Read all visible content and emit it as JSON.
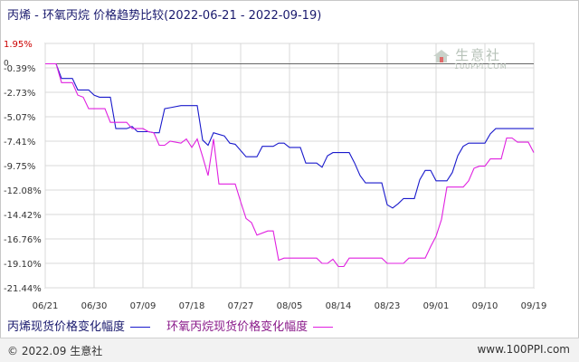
{
  "title": "丙烯 - 环氧丙烷 价格趋势比较(2022-06-21 - 2022-09-19)",
  "watermark": {
    "name": "生意社",
    "url": "100PPI.COM"
  },
  "footer": {
    "copyright": "© 2022.09 生意社",
    "site": "www.100PPI.com"
  },
  "colors": {
    "series1": "#1a1acc",
    "series2": "#e020e0",
    "grid": "#d8d8d8",
    "tick_red": "#cc0000"
  },
  "chart_data": {
    "type": "line",
    "y_ticks": [
      "1.95%",
      "-0.39%",
      "-2.73%",
      "-5.07%",
      "-7.41%",
      "-9.75%",
      "-12.08%",
      "-14.42%",
      "-16.76%",
      "-19.10%",
      "-21.44%"
    ],
    "y_tick_values": [
      1.95,
      -0.39,
      -2.73,
      -5.07,
      -7.41,
      -9.75,
      -12.08,
      -14.42,
      -16.76,
      -19.1,
      -21.44
    ],
    "zero_label": "0",
    "ylim": [
      -21.44,
      1.95
    ],
    "x_ticks": [
      "06/21",
      "06/30",
      "07/09",
      "07/18",
      "07/27",
      "08/05",
      "08/14",
      "08/23",
      "09/01",
      "09/10",
      "09/19"
    ],
    "x_range": [
      0,
      90
    ],
    "series": [
      {
        "name": "丙烯现货价格变化幅度",
        "points": [
          [
            0,
            0
          ],
          [
            2,
            0
          ],
          [
            3,
            -1.4
          ],
          [
            5,
            -1.4
          ],
          [
            6,
            -2.5
          ],
          [
            8,
            -2.5
          ],
          [
            9,
            -3
          ],
          [
            10,
            -3.2
          ],
          [
            12,
            -3.2
          ],
          [
            13,
            -6.2
          ],
          [
            15,
            -6.2
          ],
          [
            16,
            -6
          ],
          [
            17,
            -6.5
          ],
          [
            19,
            -6.5
          ],
          [
            20,
            -6.6
          ],
          [
            21,
            -6.6
          ],
          [
            22,
            -4.3
          ],
          [
            23,
            -4.2
          ],
          [
            25,
            -4
          ],
          [
            28,
            -4
          ],
          [
            29,
            -7.3
          ],
          [
            30,
            -7.8
          ],
          [
            31,
            -6.6
          ],
          [
            33,
            -6.9
          ],
          [
            34,
            -7.6
          ],
          [
            35,
            -7.7
          ],
          [
            37,
            -8.9
          ],
          [
            39,
            -8.9
          ],
          [
            40,
            -7.9
          ],
          [
            42,
            -7.9
          ],
          [
            43,
            -7.6
          ],
          [
            44,
            -7.6
          ],
          [
            45,
            -8
          ],
          [
            47,
            -8
          ],
          [
            48,
            -9.5
          ],
          [
            50,
            -9.5
          ],
          [
            51,
            -9.9
          ],
          [
            52,
            -8.8
          ],
          [
            53,
            -8.5
          ],
          [
            56,
            -8.5
          ],
          [
            57,
            -9.5
          ],
          [
            58,
            -10.7
          ],
          [
            59,
            -11.4
          ],
          [
            62,
            -11.4
          ],
          [
            63,
            -13.5
          ],
          [
            64,
            -13.8
          ],
          [
            65,
            -13.4
          ],
          [
            66,
            -12.9
          ],
          [
            68,
            -12.9
          ],
          [
            69,
            -11.1
          ],
          [
            70,
            -10.2
          ],
          [
            71,
            -10.2
          ],
          [
            72,
            -11.2
          ],
          [
            74,
            -11.2
          ],
          [
            75,
            -10.4
          ],
          [
            76,
            -8.8
          ],
          [
            77,
            -7.9
          ],
          [
            78,
            -7.6
          ],
          [
            81,
            -7.6
          ],
          [
            82,
            -6.7
          ],
          [
            83,
            -6.2
          ],
          [
            90,
            -6.2
          ]
        ]
      },
      {
        "name": "环氧丙烷现货价格变化幅度",
        "points": [
          [
            0,
            0
          ],
          [
            2,
            0
          ],
          [
            3,
            -1.8
          ],
          [
            5,
            -1.8
          ],
          [
            6,
            -3
          ],
          [
            7,
            -3.2
          ],
          [
            8,
            -4.3
          ],
          [
            11,
            -4.3
          ],
          [
            12,
            -5.6
          ],
          [
            15,
            -5.6
          ],
          [
            16,
            -6.2
          ],
          [
            18,
            -6.2
          ],
          [
            19,
            -6.5
          ],
          [
            20,
            -6.6
          ],
          [
            21,
            -7.8
          ],
          [
            22,
            -7.8
          ],
          [
            23,
            -7.4
          ],
          [
            25,
            -7.6
          ],
          [
            26,
            -7.2
          ],
          [
            27,
            -8
          ],
          [
            28,
            -7.2
          ],
          [
            29,
            -8.9
          ],
          [
            30,
            -10.7
          ],
          [
            31,
            -7.2
          ],
          [
            32,
            -11.5
          ],
          [
            35,
            -11.5
          ],
          [
            36,
            -13.2
          ],
          [
            37,
            -14.8
          ],
          [
            38,
            -15.2
          ],
          [
            39,
            -16.4
          ],
          [
            41,
            -16
          ],
          [
            42,
            -16
          ],
          [
            43,
            -18.8
          ],
          [
            44,
            -18.6
          ],
          [
            50,
            -18.6
          ],
          [
            51,
            -19.1
          ],
          [
            52,
            -19.1
          ],
          [
            53,
            -18.7
          ],
          [
            54,
            -19.4
          ],
          [
            55,
            -19.4
          ],
          [
            56,
            -18.6
          ],
          [
            62,
            -18.6
          ],
          [
            63,
            -19.1
          ],
          [
            66,
            -19.1
          ],
          [
            67,
            -18.6
          ],
          [
            70,
            -18.6
          ],
          [
            71,
            -17.5
          ],
          [
            72,
            -16.5
          ],
          [
            73,
            -14.9
          ],
          [
            74,
            -11.8
          ],
          [
            75,
            -11.8
          ],
          [
            77,
            -11.8
          ],
          [
            78,
            -11.2
          ],
          [
            79,
            -10
          ],
          [
            80,
            -9.8
          ],
          [
            81,
            -9.8
          ],
          [
            82,
            -9.1
          ],
          [
            84,
            -9.1
          ],
          [
            85,
            -7.1
          ],
          [
            86,
            -7.1
          ],
          [
            87,
            -7.5
          ],
          [
            89,
            -7.5
          ],
          [
            90,
            -8.5
          ]
        ]
      }
    ]
  }
}
